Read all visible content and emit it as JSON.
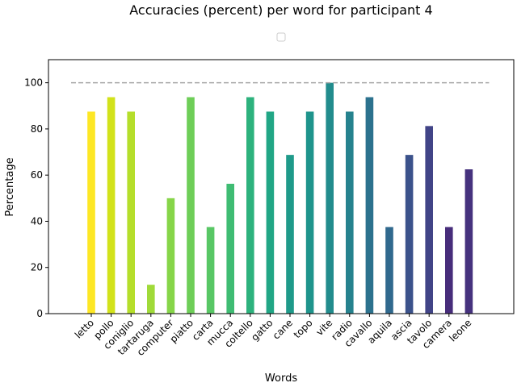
{
  "chart_data": {
    "type": "bar",
    "title": "Accuracies (percent) per word for participant 4",
    "xlabel": "Words",
    "ylabel": "Percentage",
    "ylim": [
      0,
      110
    ],
    "yticks": [
      0,
      20,
      40,
      60,
      80,
      100
    ],
    "reference_line": {
      "value": 100,
      "style": "dashed",
      "color": "#a6a6a6"
    },
    "legend": {
      "placement": "top-center",
      "entries": [
        ""
      ]
    },
    "categories": [
      "letto",
      "pollo",
      "coniglio",
      "tartaruga",
      "computer",
      "piatto",
      "carta",
      "mucca",
      "coltello",
      "gatto",
      "cane",
      "topo",
      "vite",
      "radio",
      "cavallo",
      "aquila",
      "ascia",
      "tavolo",
      "camera",
      "leone"
    ],
    "values": [
      87.5,
      93.75,
      87.5,
      12.5,
      50,
      93.75,
      37.5,
      56.25,
      93.75,
      87.5,
      68.75,
      87.5,
      100,
      87.5,
      93.75,
      37.5,
      68.75,
      81.25,
      37.5,
      62.5
    ],
    "colors": [
      "#fde725",
      "#d2e21b",
      "#b5de2b",
      "#a0da39",
      "#86d549",
      "#6ece58",
      "#58c765",
      "#3fbc73",
      "#2db27d",
      "#21a685",
      "#1f9a8a",
      "#1f948c",
      "#228c8d",
      "#26828e",
      "#2c728e",
      "#30698e",
      "#3b528b",
      "#414487",
      "#472d7b",
      "#46327e"
    ],
    "grid": false
  }
}
